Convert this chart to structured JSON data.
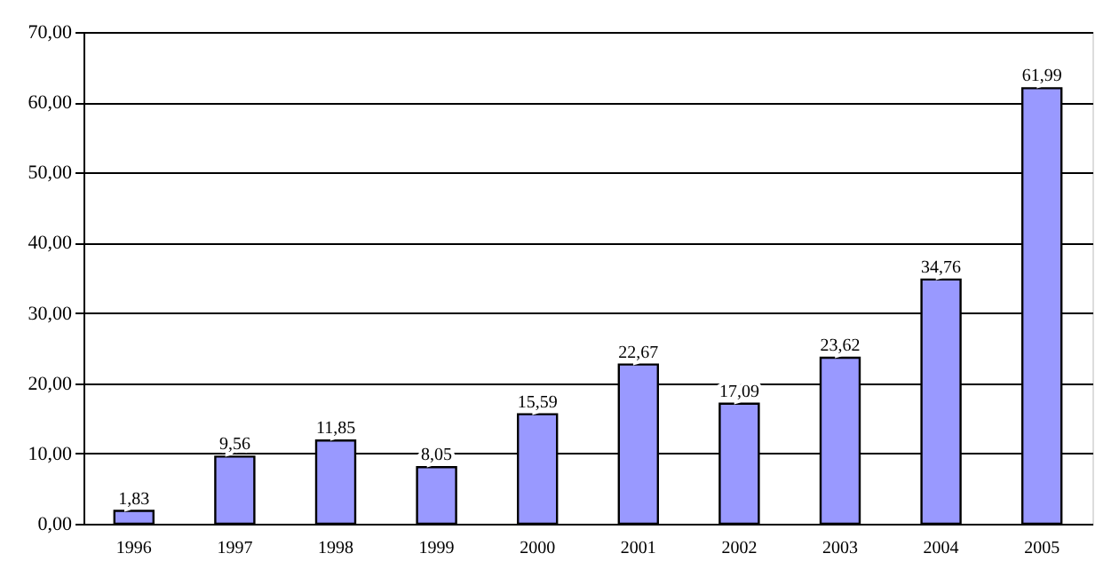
{
  "chart_data": {
    "type": "bar",
    "categories": [
      "1996",
      "1997",
      "1998",
      "1999",
      "2000",
      "2001",
      "2002",
      "2003",
      "2004",
      "2005"
    ],
    "values": [
      1.83,
      9.56,
      11.85,
      8.05,
      15.59,
      22.67,
      17.09,
      23.62,
      34.76,
      61.99
    ],
    "value_labels": [
      "1,83",
      "9,56",
      "11,85",
      "8,05",
      "15,59",
      "22,67",
      "17,09",
      "23,62",
      "34,76",
      "61,99"
    ],
    "color": "#9999ff",
    "ylim": [
      0,
      70
    ],
    "yticks": [
      {
        "value": 0,
        "label": "0,00"
      },
      {
        "value": 10,
        "label": "10,00"
      },
      {
        "value": 20,
        "label": "20,00"
      },
      {
        "value": 30,
        "label": "30,00"
      },
      {
        "value": 40,
        "label": "40,00"
      },
      {
        "value": 50,
        "label": "50,00"
      },
      {
        "value": 60,
        "label": "60,00"
      },
      {
        "value": 70,
        "label": "70,00"
      }
    ],
    "grid": "y",
    "legend": false
  }
}
